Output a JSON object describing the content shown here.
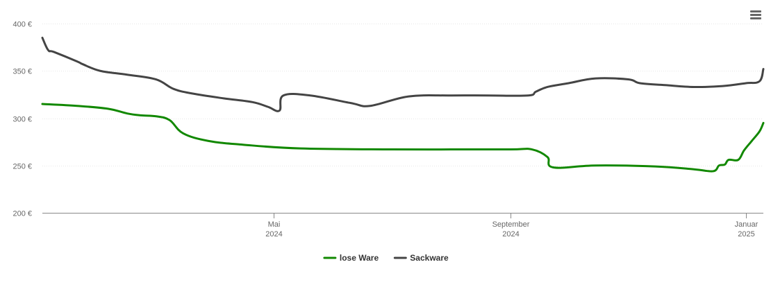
{
  "chart_data": {
    "type": "line",
    "title": "",
    "xlabel": "",
    "ylabel": "",
    "currency_suffix": " €",
    "x_range": [
      "2024-01-02",
      "2025-01-10"
    ],
    "ylim": [
      200,
      400
    ],
    "y_ticks": [
      200,
      250,
      300,
      350,
      400
    ],
    "x_ticks": [
      {
        "date": "2024-05-01",
        "month": "Mai",
        "year": "2024"
      },
      {
        "date": "2024-09-01",
        "month": "September",
        "year": "2024"
      },
      {
        "date": "2025-01-01",
        "month": "Januar",
        "year": "2025"
      }
    ],
    "grid": true,
    "legend_position": "bottom-center",
    "series": [
      {
        "name": "lose Ware",
        "color": "#118800",
        "points": [
          [
            "2024-01-02",
            315
          ],
          [
            "2024-01-20",
            313
          ],
          [
            "2024-02-05",
            310
          ],
          [
            "2024-02-15",
            305
          ],
          [
            "2024-02-22",
            303
          ],
          [
            "2024-03-01",
            302
          ],
          [
            "2024-03-08",
            298
          ],
          [
            "2024-03-15",
            284
          ],
          [
            "2024-03-28",
            276
          ],
          [
            "2024-04-15",
            272
          ],
          [
            "2024-05-15",
            268
          ],
          [
            "2024-07-01",
            267
          ],
          [
            "2024-08-01",
            267
          ],
          [
            "2024-09-01",
            267
          ],
          [
            "2024-09-12",
            267
          ],
          [
            "2024-09-20",
            259
          ],
          [
            "2024-09-23",
            248
          ],
          [
            "2024-10-15",
            250
          ],
          [
            "2024-11-15",
            249
          ],
          [
            "2024-12-05",
            246
          ],
          [
            "2024-12-15",
            244
          ],
          [
            "2024-12-18",
            250
          ],
          [
            "2024-12-21",
            251
          ],
          [
            "2024-12-23",
            256
          ],
          [
            "2024-12-28",
            256
          ],
          [
            "2024-12-31",
            266
          ],
          [
            "2025-01-04",
            276
          ],
          [
            "2025-01-08",
            286
          ],
          [
            "2025-01-10",
            295
          ]
        ]
      },
      {
        "name": "Sackware",
        "color": "#444444",
        "points": [
          [
            "2024-01-02",
            385
          ],
          [
            "2024-01-05",
            372
          ],
          [
            "2024-01-08",
            370
          ],
          [
            "2024-01-20",
            360
          ],
          [
            "2024-01-23",
            357
          ],
          [
            "2024-02-01",
            350
          ],
          [
            "2024-02-15",
            346
          ],
          [
            "2024-03-01",
            341
          ],
          [
            "2024-03-10",
            331
          ],
          [
            "2024-03-20",
            326
          ],
          [
            "2024-04-05",
            321
          ],
          [
            "2024-04-20",
            317
          ],
          [
            "2024-04-28",
            312
          ],
          [
            "2024-05-04",
            308
          ],
          [
            "2024-05-06",
            324
          ],
          [
            "2024-05-20",
            324
          ],
          [
            "2024-06-10",
            316
          ],
          [
            "2024-06-20",
            313
          ],
          [
            "2024-07-10",
            323
          ],
          [
            "2024-08-01",
            324
          ],
          [
            "2024-08-20",
            324
          ],
          [
            "2024-09-10",
            324
          ],
          [
            "2024-09-14",
            328
          ],
          [
            "2024-09-20",
            333
          ],
          [
            "2024-10-01",
            337
          ],
          [
            "2024-10-15",
            342
          ],
          [
            "2024-11-01",
            341
          ],
          [
            "2024-11-07",
            337
          ],
          [
            "2024-11-20",
            335
          ],
          [
            "2024-12-05",
            333
          ],
          [
            "2024-12-20",
            334
          ],
          [
            "2025-01-01",
            337
          ],
          [
            "2025-01-08",
            339
          ],
          [
            "2025-01-10",
            352
          ]
        ]
      }
    ]
  },
  "toolbar": {
    "menu_icon": "hamburger-menu-icon"
  }
}
